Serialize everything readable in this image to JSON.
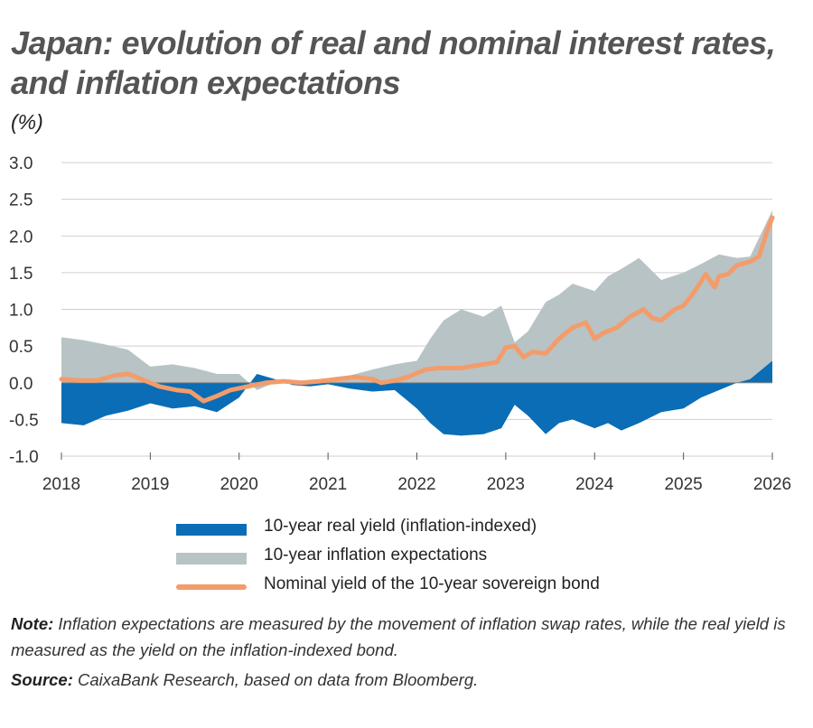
{
  "title": "Japan: evolution of real and nominal interest rates, and inflation expectations",
  "unit_label": "(%)",
  "note_label": "Note:",
  "note_text": "Inflation expectations are measured by the movement of inflation swap rates, while the real yield is measured as the yield on the inflation-indexed bond.",
  "source_label": "Source:",
  "source_text": "CaixaBank Research, based on data from Bloomberg.",
  "colors": {
    "real_yield": "#0a6db5",
    "inflation_expectations": "#b8c3c5",
    "nominal_yield": "#f39c6b",
    "grid": "#cfcfcf",
    "axis_text": "#333333"
  },
  "chart_data": {
    "type": "area",
    "x_ticks": [
      "2018",
      "2019",
      "2020",
      "2021",
      "2022",
      "2023",
      "2024",
      "2025",
      "2026"
    ],
    "y_ticks": [
      "3.0",
      "2.5",
      "2.0",
      "1.5",
      "1.0",
      "0.5",
      "0.0",
      "-0.5",
      "-1.0"
    ],
    "ylim": [
      -1.0,
      3.0
    ],
    "xlim": [
      2018,
      2026
    ],
    "grid": "horizontal",
    "legend_position": "bottom",
    "series": [
      {
        "name": "10-year real yield (inflation-indexed)",
        "kind": "area",
        "x": [
          2018.0,
          2018.25,
          2018.5,
          2018.75,
          2019.0,
          2019.25,
          2019.5,
          2019.75,
          2020.0,
          2020.2,
          2020.4,
          2020.6,
          2020.8,
          2021.0,
          2021.25,
          2021.5,
          2021.75,
          2022.0,
          2022.15,
          2022.3,
          2022.5,
          2022.75,
          2022.95,
          2023.1,
          2023.25,
          2023.45,
          2023.6,
          2023.75,
          2024.0,
          2024.15,
          2024.3,
          2024.5,
          2024.75,
          2025.0,
          2025.2,
          2025.4,
          2025.6,
          2025.75,
          2026.0
        ],
        "values": [
          -0.55,
          -0.58,
          -0.45,
          -0.38,
          -0.28,
          -0.35,
          -0.32,
          -0.4,
          -0.2,
          0.12,
          0.05,
          -0.03,
          -0.05,
          -0.02,
          -0.08,
          -0.12,
          -0.1,
          -0.35,
          -0.55,
          -0.7,
          -0.72,
          -0.7,
          -0.62,
          -0.3,
          -0.45,
          -0.7,
          -0.55,
          -0.5,
          -0.62,
          -0.55,
          -0.65,
          -0.55,
          -0.4,
          -0.35,
          -0.2,
          -0.1,
          0.0,
          0.05,
          0.3
        ]
      },
      {
        "name": "10-year inflation expectations",
        "kind": "area-top",
        "x": [
          2018.0,
          2018.25,
          2018.5,
          2018.75,
          2019.0,
          2019.25,
          2019.5,
          2019.75,
          2020.0,
          2020.2,
          2020.4,
          2020.6,
          2020.8,
          2021.0,
          2021.25,
          2021.5,
          2021.75,
          2022.0,
          2022.15,
          2022.3,
          2022.5,
          2022.75,
          2022.95,
          2023.1,
          2023.25,
          2023.45,
          2023.6,
          2023.75,
          2024.0,
          2024.15,
          2024.3,
          2024.5,
          2024.75,
          2025.0,
          2025.2,
          2025.4,
          2025.6,
          2025.75,
          2026.0
        ],
        "values": [
          0.62,
          0.58,
          0.52,
          0.45,
          0.22,
          0.25,
          0.2,
          0.12,
          0.12,
          -0.1,
          0.0,
          0.02,
          -0.05,
          0.0,
          0.1,
          0.18,
          0.25,
          0.3,
          0.6,
          0.85,
          1.0,
          0.9,
          1.05,
          0.55,
          0.7,
          1.1,
          1.2,
          1.35,
          1.25,
          1.45,
          1.55,
          1.7,
          1.4,
          1.5,
          1.62,
          1.75,
          1.7,
          1.72,
          2.35
        ]
      },
      {
        "name": "Nominal yield of the 10-year sovereign bond",
        "kind": "line",
        "x": [
          2018.0,
          2018.2,
          2018.4,
          2018.6,
          2018.75,
          2018.9,
          2019.1,
          2019.3,
          2019.45,
          2019.6,
          2019.75,
          2019.9,
          2020.1,
          2020.3,
          2020.5,
          2020.7,
          2020.9,
          2021.1,
          2021.3,
          2021.5,
          2021.6,
          2021.75,
          2021.9,
          2022.1,
          2022.25,
          2022.5,
          2022.6,
          2022.75,
          2022.9,
          2023.0,
          2023.1,
          2023.2,
          2023.3,
          2023.45,
          2023.6,
          2023.75,
          2023.9,
          2024.0,
          2024.1,
          2024.25,
          2024.4,
          2024.55,
          2024.65,
          2024.75,
          2024.9,
          2025.0,
          2025.1,
          2025.2,
          2025.25,
          2025.35,
          2025.4,
          2025.5,
          2025.6,
          2025.75,
          2025.85,
          2025.95,
          2026.0
        ],
        "values": [
          0.05,
          0.03,
          0.03,
          0.1,
          0.12,
          0.05,
          -0.05,
          -0.1,
          -0.12,
          -0.25,
          -0.18,
          -0.1,
          -0.05,
          0.0,
          0.02,
          0.0,
          0.02,
          0.05,
          0.08,
          0.05,
          0.0,
          0.03,
          0.08,
          0.18,
          0.2,
          0.2,
          0.22,
          0.25,
          0.28,
          0.48,
          0.5,
          0.35,
          0.42,
          0.4,
          0.6,
          0.75,
          0.82,
          0.6,
          0.68,
          0.75,
          0.9,
          1.0,
          0.88,
          0.85,
          1.0,
          1.05,
          1.2,
          1.38,
          1.48,
          1.3,
          1.45,
          1.48,
          1.6,
          1.65,
          1.72,
          2.1,
          2.25
        ]
      }
    ]
  }
}
